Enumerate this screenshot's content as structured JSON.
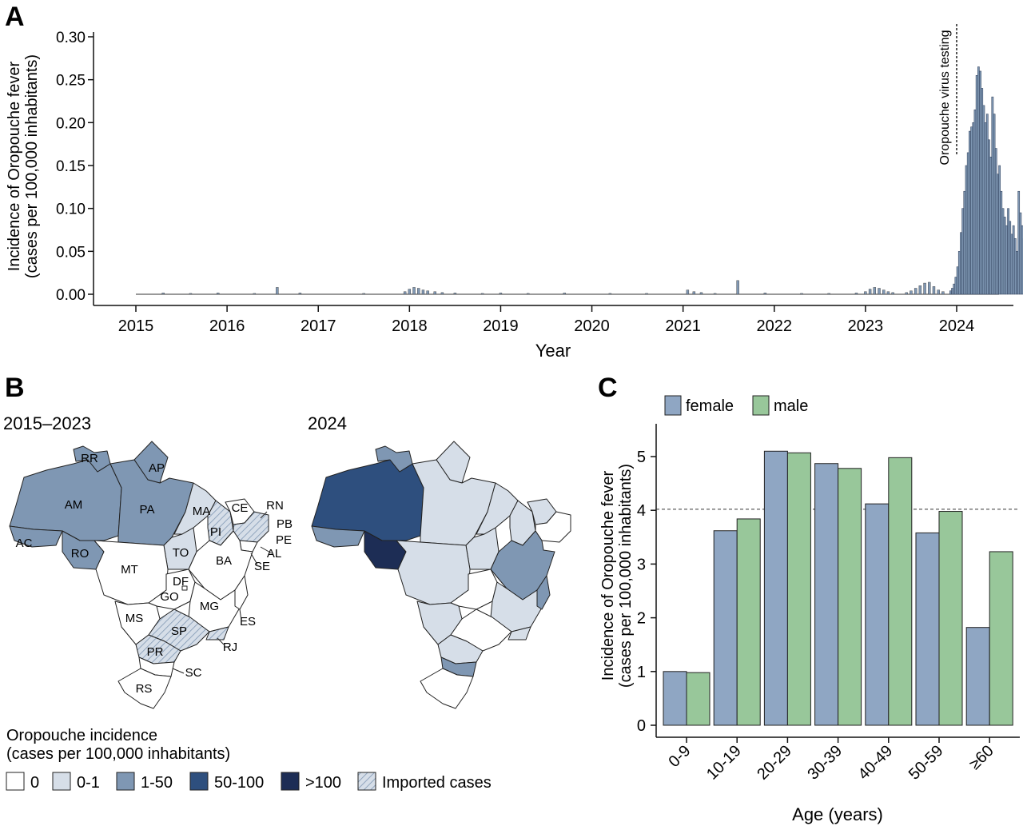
{
  "panels": {
    "a": {
      "letter": "A",
      "chart_data": {
        "type": "bar",
        "xlabel": "Year",
        "ylabel_line1": "Incidence of Oropouche fever",
        "ylabel_line2": "(cases per 100,000 inhabitants)",
        "ylim": [
          0,
          0.31
        ],
        "yticks": [
          "0.00",
          "0.05",
          "0.10",
          "0.15",
          "0.20",
          "0.25",
          "0.30"
        ],
        "xlim": [
          2014.6,
          2024.8
        ],
        "xticks": [
          "2015",
          "2016",
          "2017",
          "2018",
          "2019",
          "2020",
          "2021",
          "2022",
          "2023",
          "2024"
        ],
        "bar_color": "#7f97b3",
        "annotation": {
          "label": "Oropouche virus testing",
          "x": 2024.0
        },
        "weekly_series": {
          "start_date": "2023-12-04",
          "values": [
            0.004,
            0.007,
            0.012,
            0.02,
            0.032,
            0.05,
            0.072,
            0.1,
            0.12,
            0.15,
            0.165,
            0.19,
            0.195,
            0.2,
            0.215,
            0.255,
            0.265,
            0.26,
            0.24,
            0.22,
            0.2,
            0.21,
            0.18,
            0.16,
            0.23,
            0.21,
            0.17,
            0.14,
            0.15,
            0.12,
            0.1,
            0.09,
            0.08,
            0.1,
            0.085,
            0.07,
            0.08,
            0.065,
            0.05,
            0.12,
            0.095,
            0.08,
            0.065,
            0.05,
            0.035,
            0.042,
            0.03
          ]
        },
        "background_bars": [
          {
            "x": 2015.3,
            "y": 0.0015
          },
          {
            "x": 2015.6,
            "y": 0.001
          },
          {
            "x": 2015.9,
            "y": 0.0015
          },
          {
            "x": 2016.3,
            "y": 0.001
          },
          {
            "x": 2016.55,
            "y": 0.008
          },
          {
            "x": 2016.8,
            "y": 0.0015
          },
          {
            "x": 2017.5,
            "y": 0.001
          },
          {
            "x": 2017.95,
            "y": 0.003
          },
          {
            "x": 2018.0,
            "y": 0.006
          },
          {
            "x": 2018.05,
            "y": 0.008
          },
          {
            "x": 2018.1,
            "y": 0.007
          },
          {
            "x": 2018.15,
            "y": 0.005
          },
          {
            "x": 2018.2,
            "y": 0.004
          },
          {
            "x": 2018.28,
            "y": 0.003
          },
          {
            "x": 2018.36,
            "y": 0.002
          },
          {
            "x": 2018.5,
            "y": 0.0015
          },
          {
            "x": 2018.8,
            "y": 0.001
          },
          {
            "x": 2019.0,
            "y": 0.0015
          },
          {
            "x": 2019.3,
            "y": 0.001
          },
          {
            "x": 2019.7,
            "y": 0.0015
          },
          {
            "x": 2020.2,
            "y": 0.001
          },
          {
            "x": 2020.6,
            "y": 0.001
          },
          {
            "x": 2021.05,
            "y": 0.005
          },
          {
            "x": 2021.12,
            "y": 0.003
          },
          {
            "x": 2021.2,
            "y": 0.002
          },
          {
            "x": 2021.35,
            "y": 0.001
          },
          {
            "x": 2021.6,
            "y": 0.016
          },
          {
            "x": 2021.9,
            "y": 0.0015
          },
          {
            "x": 2022.3,
            "y": 0.001
          },
          {
            "x": 2022.6,
            "y": 0.001
          },
          {
            "x": 2022.9,
            "y": 0.0015
          },
          {
            "x": 2023.0,
            "y": 0.003
          },
          {
            "x": 2023.05,
            "y": 0.006
          },
          {
            "x": 2023.1,
            "y": 0.008
          },
          {
            "x": 2023.15,
            "y": 0.007
          },
          {
            "x": 2023.2,
            "y": 0.005
          },
          {
            "x": 2023.25,
            "y": 0.003
          },
          {
            "x": 2023.3,
            "y": 0.002
          },
          {
            "x": 2023.45,
            "y": 0.002
          },
          {
            "x": 2023.5,
            "y": 0.004
          },
          {
            "x": 2023.55,
            "y": 0.007
          },
          {
            "x": 2023.6,
            "y": 0.01
          },
          {
            "x": 2023.65,
            "y": 0.013
          },
          {
            "x": 2023.7,
            "y": 0.014
          },
          {
            "x": 2023.75,
            "y": 0.009
          },
          {
            "x": 2023.8,
            "y": 0.005
          },
          {
            "x": 2023.85,
            "y": 0.003
          }
        ]
      }
    },
    "b": {
      "letter": "B",
      "map_left_title": "2015–2023",
      "map_right_title": "2024",
      "state_labels": [
        "RR",
        "AP",
        "AM",
        "PA",
        "MA",
        "CE",
        "RN",
        "PB",
        "PE",
        "AL",
        "SE",
        "PI",
        "AC",
        "RO",
        "TO",
        "BA",
        "MT",
        "DF",
        "GO",
        "MG",
        "ES",
        "MS",
        "SP",
        "RJ",
        "PR",
        "SC",
        "RS"
      ],
      "legend_title_line1": "Oropouche incidence",
      "legend_title_line2": "(cases per 100,000 inhabitants)",
      "legend_items": [
        {
          "label": "0",
          "color": "#ffffff"
        },
        {
          "label": "0-1",
          "color": "#d6dee8"
        },
        {
          "label": "1-50",
          "color": "#7f97b3"
        },
        {
          "label": "50-100",
          "color": "#2e4f7e"
        },
        {
          "label": ">100",
          "color": "#1d2d55"
        },
        {
          "label": "Imported cases",
          "color": "#d6dee8"
        }
      ]
    },
    "c": {
      "letter": "C",
      "chart_data": {
        "type": "bar",
        "categories": [
          "0-9",
          "10-19",
          "20-29",
          "30-39",
          "40-49",
          "50-59",
          "≥60"
        ],
        "series": [
          {
            "name": "female",
            "color": "#8fa6c3",
            "values": [
              1.0,
              3.62,
              5.1,
              4.87,
              4.12,
              3.58,
              1.82
            ]
          },
          {
            "name": "male",
            "color": "#98c79a",
            "values": [
              0.98,
              3.84,
              5.07,
              4.78,
              4.98,
              3.98,
              3.23
            ]
          }
        ],
        "reference_line": 4.02,
        "xlabel": "Age (years)",
        "ylabel_line1": "Incidence of Oropouche fever",
        "ylabel_line2": "(cases per 100,000 inhabitants)",
        "ylim": [
          0,
          5.5
        ],
        "yticks": [
          "0",
          "1",
          "2",
          "3",
          "4",
          "5"
        ],
        "legend": "top-left"
      }
    }
  }
}
